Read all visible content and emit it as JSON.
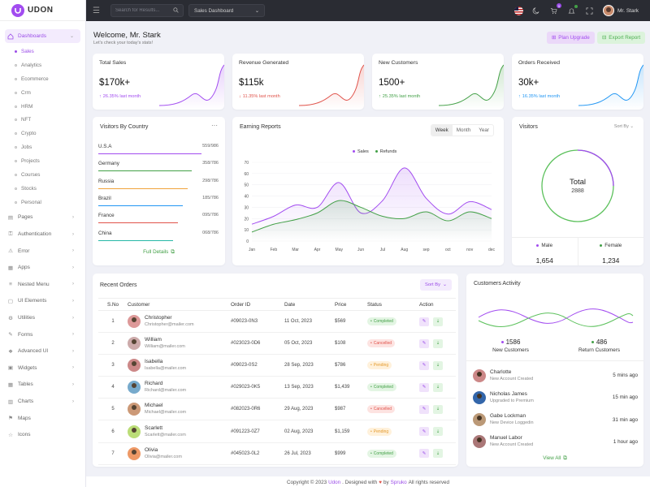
{
  "brand": {
    "name": "UDON"
  },
  "sidebar": {
    "dashboards": "Dashboards",
    "sub": [
      "Sales",
      "Analytics",
      "Ecommerce",
      "Crm",
      "HRM",
      "NFT",
      "Crypto",
      "Jobs",
      "Projects",
      "Courses",
      "Stocks",
      "Personal"
    ],
    "items": [
      "Pages",
      "Authentication",
      "Error",
      "Apps",
      "Nested Menu",
      "UI Elements",
      "Utilities",
      "Forms",
      "Advanced UI",
      "Widgets",
      "Tables",
      "Charts",
      "Maps",
      "Icons"
    ]
  },
  "topbar": {
    "search_placeholder": "Search for Results...",
    "dashboard_select": "Sales Dashboard",
    "cart_count": "5",
    "user_name": "Mr. Stark"
  },
  "page": {
    "welcome": "Welcome, Mr. Stark",
    "subtitle": "Let's check your today's stats!",
    "upgrade": "Plan Upgrade",
    "export": "Export Report"
  },
  "stats": [
    {
      "title": "Total Sales",
      "value": "$170k+",
      "change": "26.35% last month",
      "dir": "up",
      "color": "#a24cf0"
    },
    {
      "title": "Revenue Generated",
      "value": "$115k",
      "change": "11.35% last month",
      "dir": "down",
      "color": "#e0524a"
    },
    {
      "title": "New Customers",
      "value": "1500+",
      "change": "25.35% last month",
      "dir": "up",
      "color": "#43a047"
    },
    {
      "title": "Orders Received",
      "value": "30k+",
      "change": "16.35% last month",
      "dir": "up",
      "color": "#2196f3"
    }
  ],
  "visitors_country": {
    "title": "Visitors By Country",
    "rows": [
      {
        "name": "U.S.A",
        "value": "559/986",
        "color": "#a24cf0",
        "fill": 0.86
      },
      {
        "name": "Germany",
        "value": "358/786",
        "color": "#43a047",
        "fill": 0.78
      },
      {
        "name": "Russia",
        "value": "298/786",
        "color": "#f0a33c",
        "fill": 0.74
      },
      {
        "name": "Brazil",
        "value": "185/786",
        "color": "#2196f3",
        "fill": 0.7
      },
      {
        "name": "France",
        "value": "095/786",
        "color": "#e0524a",
        "fill": 0.66
      },
      {
        "name": "China",
        "value": "068/786",
        "color": "#26b8a6",
        "fill": 0.62
      }
    ],
    "details": "Full Details"
  },
  "earning": {
    "title": "Earning Reports",
    "tabs": [
      "Week",
      "Month",
      "Year"
    ]
  },
  "chart_data": {
    "type": "line",
    "categories": [
      "Jan",
      "Feb",
      "Mar",
      "Apr",
      "May",
      "Jun",
      "Jul",
      "Aug",
      "sep",
      "oct",
      "nov",
      "dec"
    ],
    "series": [
      {
        "name": "Sales",
        "values": [
          15,
          22,
          32,
          30,
          52,
          25,
          36,
          65,
          38,
          24,
          35,
          28
        ],
        "color": "#a24cf0"
      },
      {
        "name": "Refunds",
        "values": [
          8,
          15,
          19,
          25,
          36,
          30,
          22,
          20,
          26,
          18,
          26,
          20
        ],
        "color": "#43a047"
      }
    ],
    "ylim": [
      0,
      70
    ],
    "yticks": [
      "0",
      "10",
      "20",
      "30",
      "40",
      "50",
      "60",
      "70"
    ]
  },
  "visitors": {
    "title": "Visitors",
    "sort": "Sort By",
    "total_label": "Total",
    "total": "2888",
    "male_label": "Male",
    "male": "1,654",
    "female_label": "Female",
    "female": "1,234"
  },
  "orders": {
    "title": "Recent Orders",
    "sort": "Sort By",
    "headers": [
      "S.No",
      "Customer",
      "Order ID",
      "Date",
      "Price",
      "Status",
      "Action"
    ],
    "rows": [
      {
        "no": "1",
        "name": "Christopher",
        "email": "Christopher@mailer.com",
        "id": "#09023-0N3",
        "date": "11 Oct, 2023",
        "price": "$569",
        "status": "Completed",
        "cls": "p-c",
        "av": "#d99"
      },
      {
        "no": "2",
        "name": "William",
        "email": "William@mailer.com",
        "id": "#023023-0D6",
        "date": "05 Oct, 2023",
        "price": "$108",
        "status": "Cancelled",
        "cls": "p-x",
        "av": "#caa"
      },
      {
        "no": "3",
        "name": "Isabella",
        "email": "Isabella@mailer.com",
        "id": "#09023-0S2",
        "date": "28 Sep, 2023",
        "price": "$786",
        "status": "Pending",
        "cls": "p-p",
        "av": "#c88"
      },
      {
        "no": "4",
        "name": "Richard",
        "email": "Richard@mailer.com",
        "id": "#029023-0K5",
        "date": "13 Sep, 2023",
        "price": "$1,439",
        "status": "Completed",
        "cls": "p-c",
        "av": "#7ac"
      },
      {
        "no": "5",
        "name": "Michael",
        "email": "Michael@mailer.com",
        "id": "#082023-0R6",
        "date": "29 Aug, 2023",
        "price": "$987",
        "status": "Cancelled",
        "cls": "p-x",
        "av": "#c97"
      },
      {
        "no": "6",
        "name": "Scarlett",
        "email": "Scarlett@mailer.com",
        "id": "#091223-0Z7",
        "date": "02 Aug, 2023",
        "price": "$1,159",
        "status": "Pending",
        "cls": "p-p",
        "av": "#bd7"
      },
      {
        "no": "7",
        "name": "Olivia",
        "email": "Olivia@mailer.com",
        "id": "#045023-0L2",
        "date": "26 Jul, 2023",
        "price": "$999",
        "status": "Completed",
        "cls": "p-c",
        "av": "#e96"
      }
    ]
  },
  "activity": {
    "title": "Customers Activity",
    "new_num": "1586",
    "new_label": "New Customers",
    "ret_num": "486",
    "ret_label": "Return Customers",
    "items": [
      {
        "name": "Charlotte",
        "desc": "New Account Created",
        "time": "5 mins ago",
        "av": "#c88"
      },
      {
        "name": "Nicholas James",
        "desc": "Upgraded to Premium",
        "time": "15 min ago",
        "av": "#36a"
      },
      {
        "name": "Gabe Lockman",
        "desc": "New Device Loggedin",
        "time": "31 min ago",
        "av": "#b97"
      },
      {
        "name": "Manuel Labor",
        "desc": "New Account Created",
        "time": "1 hour ago",
        "av": "#a77"
      }
    ],
    "view_all": "View All"
  },
  "footer": {
    "copy": "Copyright © 2023",
    "brand": "Udon",
    "designed": ". Designed with",
    "by": "by",
    "spruko": "Spruko",
    "rights": "All rights reserved"
  }
}
